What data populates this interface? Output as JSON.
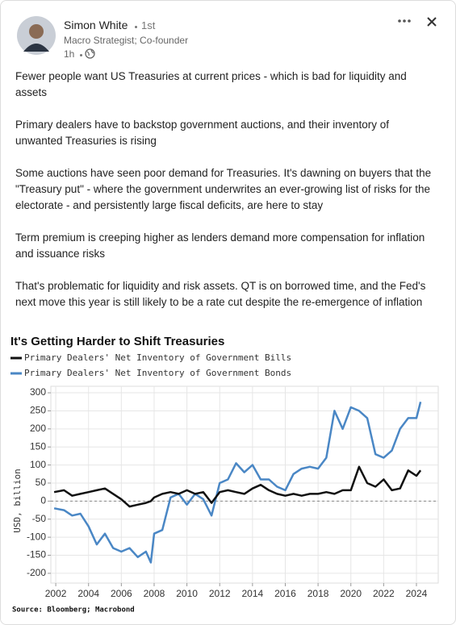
{
  "post": {
    "author": "Simon White",
    "degree": "1st",
    "headline": "Macro Strategist; Co-founder",
    "time": "1h",
    "paragraphs": [
      "Fewer people want US Treasuries at current prices - which is bad for liquidity and assets",
      "Primary dealers have to backstop government auctions, and their inventory of unwanted Treasuries is rising",
      "Some auctions have seen poor demand for Treasuries. It's dawning on buyers that the \"Treasury put\" - where the government underwrites an ever-growing list of risks for the electorate - and persistently large fiscal deficits, are here to stay",
      "Term premium is creeping higher as lenders demand more compensation for inflation and issuance risks",
      "That's problematic for liquidity and risk assets. QT is on borrowed time, and the Fed's next move this year is still likely to be a rate cut despite the re-emergence of inflation"
    ]
  },
  "chart_data": {
    "type": "line",
    "title": "It's Getting Harder to Shift Treasuries",
    "y_label": "USD, billion",
    "source": "Source: Bloomberg; Macrobond",
    "x": [
      2001.9,
      2002.5,
      2003,
      2003.5,
      2004,
      2004.5,
      2005,
      2005.5,
      2006,
      2006.5,
      2007,
      2007.5,
      2007.8,
      2008,
      2008.5,
      2009,
      2009.5,
      2010,
      2010.5,
      2011,
      2011.5,
      2012,
      2012.5,
      2013,
      2013.5,
      2014,
      2014.5,
      2015,
      2015.5,
      2016,
      2016.5,
      2017,
      2017.5,
      2018,
      2018.5,
      2019,
      2019.5,
      2020,
      2020.5,
      2021,
      2021.5,
      2022,
      2022.5,
      2023,
      2023.5,
      2024,
      2024.25
    ],
    "series": [
      {
        "name": "Primary Dealers' Net Inventory of Government Bills",
        "color": "#111111",
        "values": [
          25,
          30,
          15,
          20,
          25,
          30,
          35,
          20,
          5,
          -15,
          -10,
          -5,
          0,
          10,
          20,
          25,
          20,
          30,
          20,
          25,
          -5,
          25,
          30,
          25,
          20,
          35,
          45,
          30,
          20,
          15,
          20,
          15,
          20,
          20,
          25,
          20,
          30,
          30,
          95,
          50,
          40,
          60,
          30,
          35,
          85,
          70,
          85
        ]
      },
      {
        "name": "Primary Dealers' Net Inventory of Government Bonds",
        "color": "#4a87c5",
        "values": [
          -20,
          -25,
          -40,
          -35,
          -70,
          -120,
          -90,
          -130,
          -140,
          -130,
          -155,
          -140,
          -170,
          -90,
          -80,
          10,
          20,
          -10,
          20,
          5,
          -40,
          50,
          60,
          105,
          80,
          100,
          60,
          60,
          40,
          30,
          75,
          90,
          95,
          90,
          120,
          250,
          200,
          260,
          250,
          230,
          130,
          120,
          140,
          200,
          230,
          230,
          275
        ]
      }
    ],
    "xlim": [
      2001.7,
      2025.33
    ],
    "xticks": [
      2002,
      2004,
      2006,
      2008,
      2010,
      2012,
      2014,
      2016,
      2018,
      2020,
      2022,
      2024
    ],
    "ylim": [
      -227,
      318
    ],
    "yticks": [
      -200,
      -150,
      -100,
      -50,
      0,
      50,
      100,
      150,
      200,
      250,
      300
    ],
    "grid": true
  }
}
